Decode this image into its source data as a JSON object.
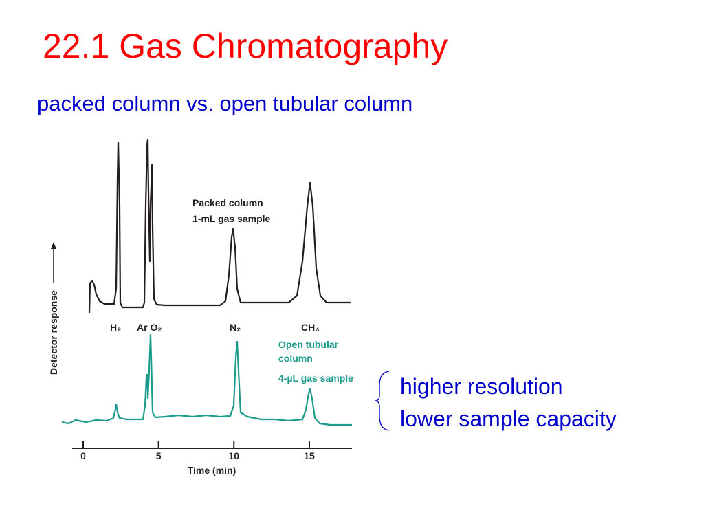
{
  "slide": {
    "title": "22.1 Gas Chromatography",
    "subtitle": "packed column vs. open tubular column",
    "figure": {
      "x_label": "Time (min)",
      "y_label": "Detector response",
      "xticks": [
        0,
        5,
        10,
        15
      ],
      "peak_labels": [
        "H₂",
        "Ar O₂",
        "N₂",
        "CH₄"
      ],
      "packed_label": [
        "Packed column",
        "1-mL gas sample"
      ],
      "open_label": [
        "Open tubular",
        "column",
        "4-µL gas sample"
      ]
    },
    "notes": [
      "higher resolution",
      "lower sample capacity"
    ]
  }
}
